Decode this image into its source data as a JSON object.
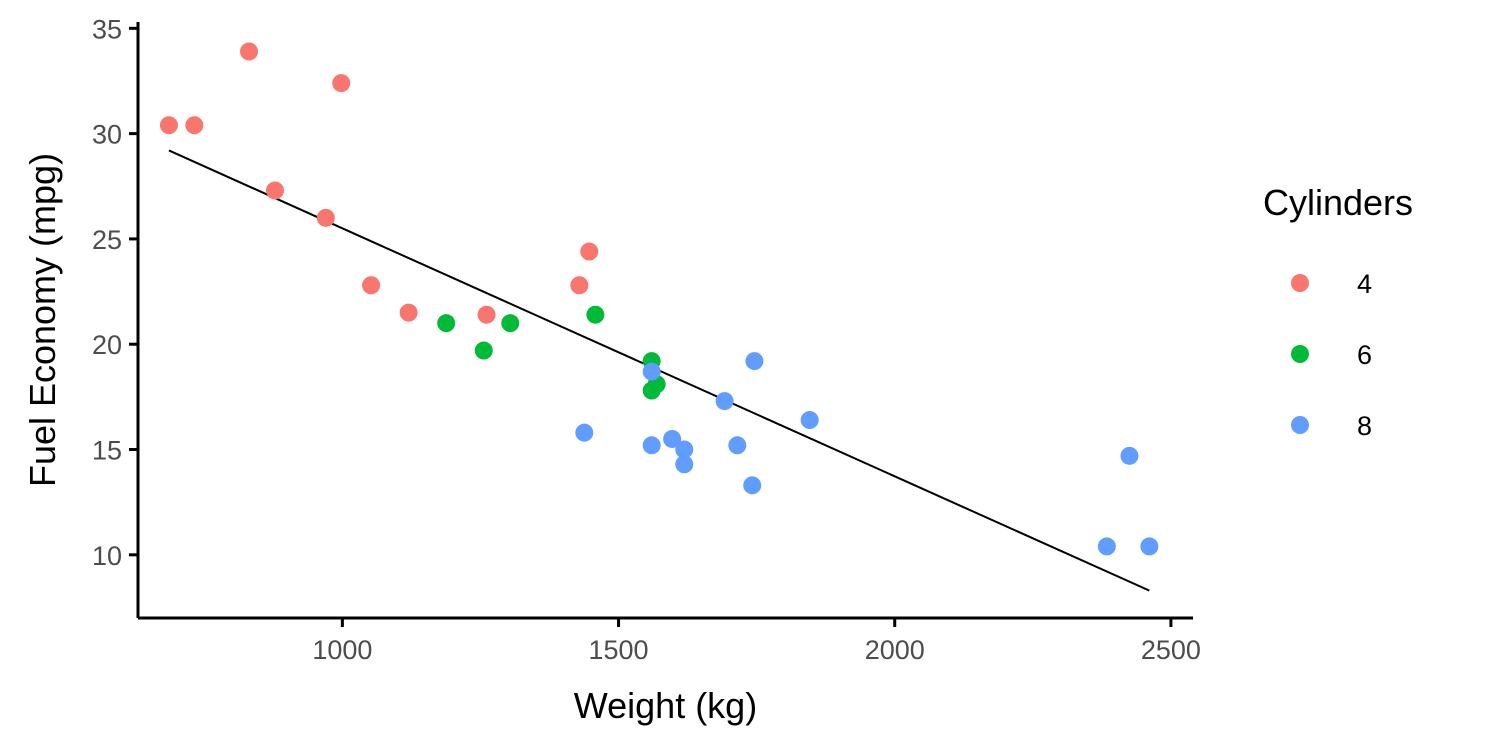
{
  "chart_data": {
    "type": "scatter",
    "title": "",
    "xlabel": "Weight (kg)",
    "ylabel": "Fuel Economy (mpg)",
    "xlim": [
      630,
      2540
    ],
    "ylim": [
      7,
      35.3
    ],
    "xticks": [
      1000,
      1500,
      2000,
      2500
    ],
    "yticks": [
      10,
      15,
      20,
      25,
      30,
      35
    ],
    "grid": false,
    "legend": {
      "title": "Cylinders",
      "position": "right"
    },
    "series": [
      {
        "name": "4",
        "color": "#F8766D",
        "points": [
          [
            686,
            30.4
          ],
          [
            732,
            30.4
          ],
          [
            831,
            33.9
          ],
          [
            878,
            27.3
          ],
          [
            970,
            26.0
          ],
          [
            998,
            32.4
          ],
          [
            1052,
            22.8
          ],
          [
            1120,
            21.5
          ],
          [
            1261,
            21.4
          ],
          [
            1429,
            22.8
          ],
          [
            1447,
            24.4
          ]
        ]
      },
      {
        "name": "6",
        "color": "#00BA38",
        "points": [
          [
            1188,
            21.0
          ],
          [
            1256,
            19.7
          ],
          [
            1304,
            21.0
          ],
          [
            1458,
            21.4
          ],
          [
            1560,
            19.2
          ],
          [
            1560,
            17.8
          ],
          [
            1569,
            18.1
          ]
        ]
      },
      {
        "name": "8",
        "color": "#619CFF",
        "points": [
          [
            1438,
            15.8
          ],
          [
            1560,
            15.2
          ],
          [
            1560,
            18.7
          ],
          [
            1597,
            15.5
          ],
          [
            1619,
            15.0
          ],
          [
            1619,
            14.3
          ],
          [
            1692,
            17.3
          ],
          [
            1715,
            15.2
          ],
          [
            1742,
            13.3
          ],
          [
            1746,
            19.2
          ],
          [
            1846,
            16.4
          ],
          [
            2384,
            10.4
          ],
          [
            2425,
            14.7
          ],
          [
            2461,
            10.4
          ]
        ]
      }
    ],
    "trendline": {
      "type": "linear",
      "color": "#000000",
      "points": [
        [
          686,
          29.2
        ],
        [
          2461,
          8.3
        ]
      ]
    }
  }
}
